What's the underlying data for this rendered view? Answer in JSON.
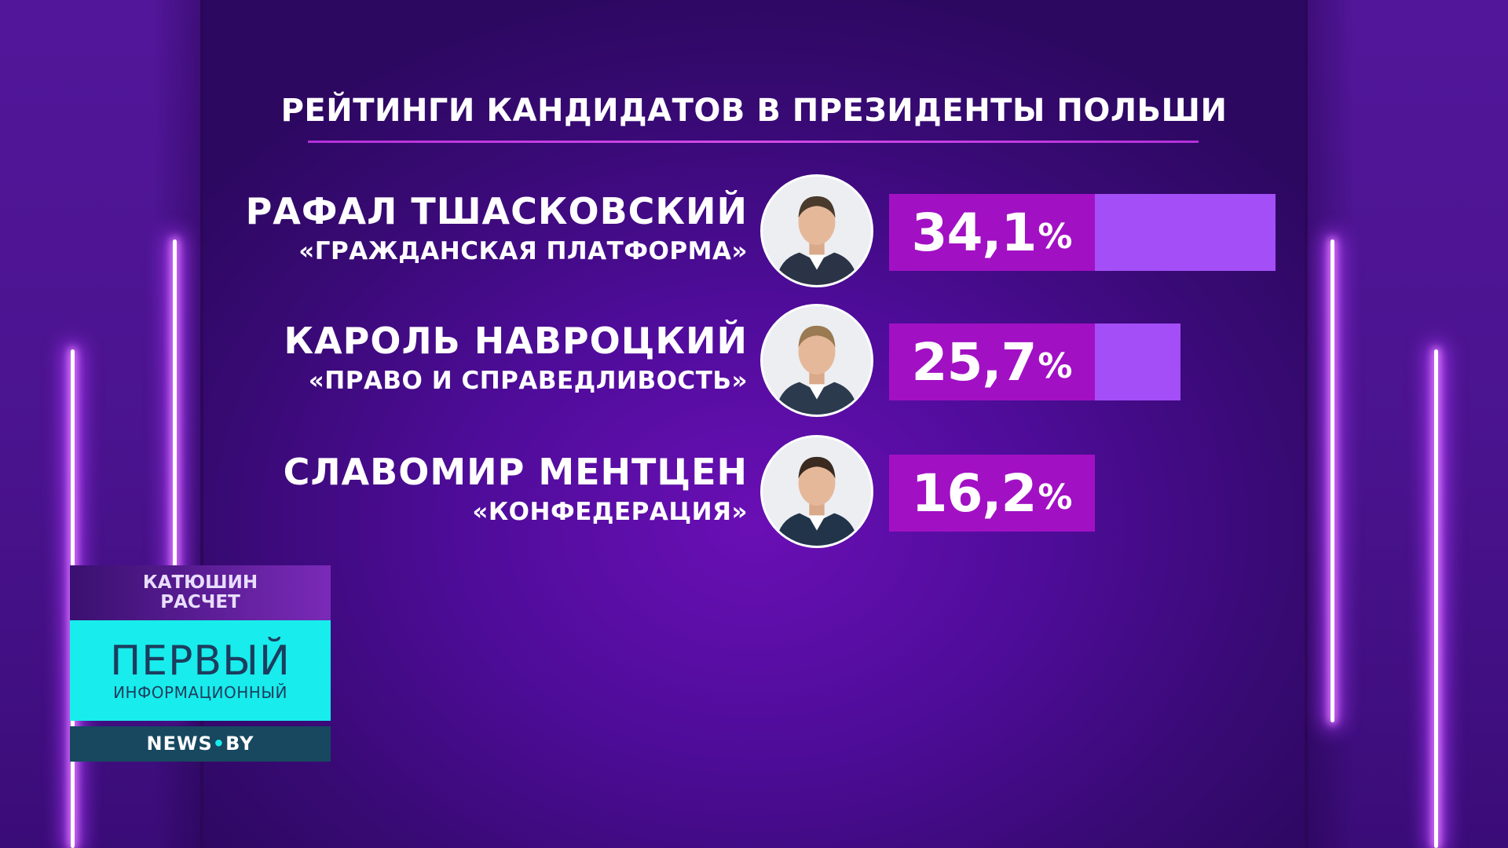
{
  "title": "РЕЙТИНГИ КАНДИДАТОВ В ПРЕЗИДЕНТЫ ПОЛЬШИ",
  "chart_data": {
    "type": "bar",
    "orientation": "horizontal",
    "title": "РЕЙТИНГИ КАНДИДАТОВ В ПРЕЗИДЕНТЫ ПОЛЬШИ",
    "categories": [
      "РАФАЛ ТШАСКОВСКИЙ",
      "КАРОЛЬ НАВРОЦКИЙ",
      "СЛАВОМИР МЕНТЦЕН"
    ],
    "values": [
      34.1,
      25.7,
      16.2
    ],
    "value_labels": [
      "34,1",
      "25,7",
      "16,2"
    ],
    "unit": "%",
    "grid": false,
    "legend": "none",
    "candidates": [
      {
        "name": "РАФАЛ ТШАСКОВСКИЙ",
        "party": "«ГРАЖДАНСКАЯ ПЛАТФОРМА»",
        "value": 34.1,
        "label": "34,1",
        "unit": "%"
      },
      {
        "name": "КАРОЛЬ НАВРОЦКИЙ",
        "party": "«ПРАВО И СПРАВЕДЛИВОСТЬ»",
        "value": 25.7,
        "label": "25,7",
        "unit": "%"
      },
      {
        "name": "СЛАВОМИР МЕНТЦЕН",
        "party": "«КОНФЕДЕРАЦИЯ»",
        "value": 16.2,
        "label": "16,2",
        "unit": "%"
      }
    ],
    "colors": {
      "label_box": "#a210c4",
      "bar": "#a44ef7",
      "background": "#4f0c9a"
    }
  },
  "source": {
    "line1": "КАТЮШИН",
    "line2": "РАСЧЕТ"
  },
  "logo": {
    "brand": "ПЕРВЫЙ",
    "sub": "ИНФОРМАЦИОННЫЙ",
    "site_a": "NEWS",
    "site_dot": "•",
    "site_b": "BY"
  }
}
